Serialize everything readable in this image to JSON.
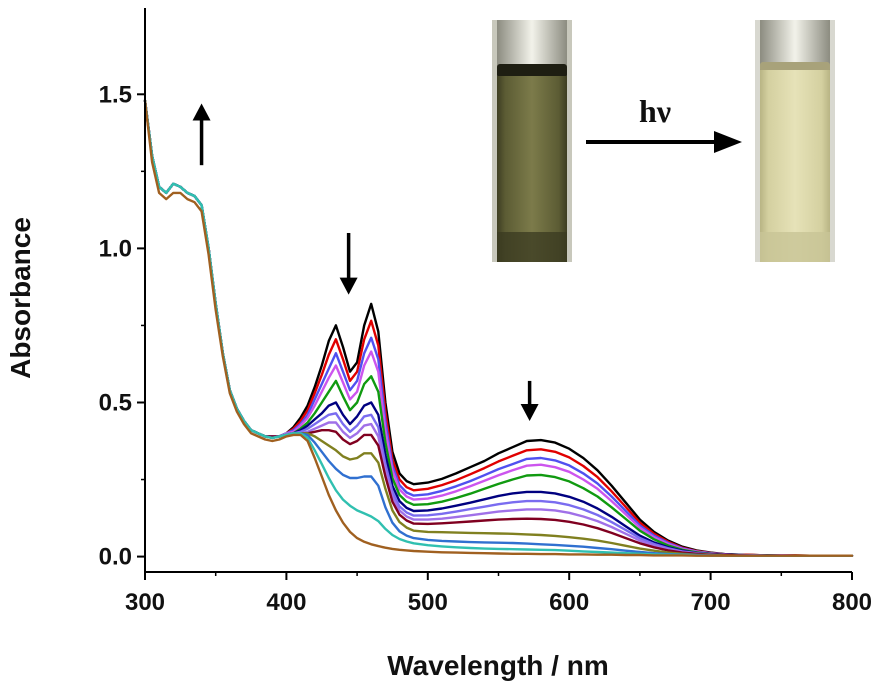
{
  "chart_data": {
    "type": "line",
    "xlabel": "Wavelength / nm",
    "ylabel": "Absorbance",
    "xlim": [
      300,
      800
    ],
    "ylim": [
      -0.05,
      1.78
    ],
    "x_ticks": [
      300,
      400,
      500,
      600,
      700,
      800
    ],
    "y_ticks": [
      0.0,
      0.5,
      1.0,
      1.5
    ],
    "x_tick_labels": [
      "300",
      "400",
      "500",
      "600",
      "700",
      "800"
    ],
    "y_tick_labels": [
      "0.0",
      "0.5",
      "1.0",
      "1.5"
    ],
    "grid": false,
    "legend": "none",
    "x": [
      300,
      305,
      310,
      315,
      320,
      325,
      330,
      335,
      340,
      345,
      350,
      355,
      360,
      365,
      370,
      375,
      380,
      385,
      390,
      395,
      400,
      405,
      410,
      415,
      420,
      425,
      430,
      435,
      440,
      445,
      450,
      455,
      460,
      465,
      470,
      475,
      480,
      485,
      490,
      500,
      510,
      520,
      530,
      540,
      550,
      560,
      570,
      580,
      590,
      600,
      610,
      620,
      630,
      640,
      650,
      660,
      670,
      680,
      690,
      700,
      710,
      720,
      730,
      740,
      750,
      760,
      770,
      780,
      790,
      800
    ],
    "series": [
      {
        "color": "#000000",
        "values": [
          1.48,
          1.3,
          1.2,
          1.18,
          1.21,
          1.2,
          1.18,
          1.17,
          1.14,
          1.0,
          0.82,
          0.66,
          0.54,
          0.48,
          0.44,
          0.41,
          0.4,
          0.39,
          0.39,
          0.39,
          0.4,
          0.42,
          0.45,
          0.49,
          0.55,
          0.62,
          0.7,
          0.75,
          0.68,
          0.6,
          0.63,
          0.75,
          0.82,
          0.73,
          0.5,
          0.34,
          0.27,
          0.245,
          0.235,
          0.24,
          0.252,
          0.27,
          0.29,
          0.31,
          0.335,
          0.355,
          0.375,
          0.378,
          0.37,
          0.35,
          0.32,
          0.28,
          0.23,
          0.175,
          0.12,
          0.08,
          0.052,
          0.032,
          0.02,
          0.013,
          0.008,
          0.006,
          0.005,
          0.004,
          0.004,
          0.004,
          0.003,
          0.003,
          0.003,
          0.003
        ]
      },
      {
        "color": "#e00000",
        "values": [
          1.48,
          1.3,
          1.2,
          1.18,
          1.21,
          1.2,
          1.18,
          1.17,
          1.14,
          1.0,
          0.82,
          0.66,
          0.54,
          0.48,
          0.44,
          0.41,
          0.4,
          0.39,
          0.39,
          0.39,
          0.4,
          0.415,
          0.44,
          0.475,
          0.53,
          0.59,
          0.655,
          0.705,
          0.64,
          0.57,
          0.6,
          0.705,
          0.765,
          0.685,
          0.47,
          0.315,
          0.25,
          0.225,
          0.215,
          0.22,
          0.232,
          0.248,
          0.267,
          0.287,
          0.309,
          0.327,
          0.345,
          0.348,
          0.34,
          0.322,
          0.294,
          0.258,
          0.212,
          0.161,
          0.11,
          0.074,
          0.048,
          0.029,
          0.018,
          0.012,
          0.007,
          0.006,
          0.005,
          0.004,
          0.004,
          0.004,
          0.003,
          0.003,
          0.003,
          0.003
        ]
      },
      {
        "color": "#5050f0",
        "values": [
          1.48,
          1.3,
          1.2,
          1.18,
          1.21,
          1.2,
          1.18,
          1.17,
          1.14,
          1.0,
          0.82,
          0.66,
          0.54,
          0.48,
          0.44,
          0.41,
          0.4,
          0.39,
          0.39,
          0.39,
          0.4,
          0.41,
          0.43,
          0.46,
          0.51,
          0.56,
          0.61,
          0.66,
          0.6,
          0.54,
          0.57,
          0.66,
          0.71,
          0.64,
          0.44,
          0.295,
          0.232,
          0.208,
          0.198,
          0.202,
          0.213,
          0.228,
          0.245,
          0.264,
          0.284,
          0.3,
          0.317,
          0.32,
          0.312,
          0.296,
          0.27,
          0.237,
          0.195,
          0.148,
          0.101,
          0.068,
          0.044,
          0.027,
          0.017,
          0.011,
          0.007,
          0.005,
          0.004,
          0.004,
          0.004,
          0.003,
          0.003,
          0.003,
          0.003,
          0.003
        ]
      },
      {
        "color": "#cc55ee",
        "values": [
          1.48,
          1.3,
          1.2,
          1.18,
          1.21,
          1.2,
          1.18,
          1.17,
          1.14,
          1.0,
          0.82,
          0.66,
          0.54,
          0.48,
          0.44,
          0.41,
          0.4,
          0.39,
          0.39,
          0.39,
          0.4,
          0.405,
          0.425,
          0.45,
          0.49,
          0.535,
          0.58,
          0.62,
          0.565,
          0.51,
          0.535,
          0.62,
          0.665,
          0.6,
          0.41,
          0.28,
          0.218,
          0.195,
          0.185,
          0.188,
          0.198,
          0.212,
          0.228,
          0.246,
          0.264,
          0.28,
          0.295,
          0.298,
          0.29,
          0.275,
          0.25,
          0.22,
          0.18,
          0.137,
          0.094,
          0.063,
          0.041,
          0.025,
          0.016,
          0.01,
          0.007,
          0.005,
          0.004,
          0.004,
          0.004,
          0.003,
          0.003,
          0.003,
          0.003,
          0.003
        ]
      },
      {
        "color": "#109a10",
        "values": [
          1.48,
          1.3,
          1.2,
          1.18,
          1.21,
          1.2,
          1.18,
          1.17,
          1.14,
          1.0,
          0.82,
          0.66,
          0.54,
          0.48,
          0.44,
          0.41,
          0.4,
          0.39,
          0.39,
          0.39,
          0.4,
          0.4,
          0.415,
          0.435,
          0.465,
          0.5,
          0.535,
          0.57,
          0.52,
          0.475,
          0.5,
          0.56,
          0.585,
          0.535,
          0.37,
          0.255,
          0.2,
          0.178,
          0.168,
          0.17,
          0.178,
          0.19,
          0.204,
          0.22,
          0.236,
          0.25,
          0.263,
          0.265,
          0.258,
          0.244,
          0.222,
          0.195,
          0.16,
          0.122,
          0.084,
          0.056,
          0.036,
          0.022,
          0.014,
          0.009,
          0.006,
          0.005,
          0.004,
          0.004,
          0.003,
          0.003,
          0.003,
          0.003,
          0.003,
          0.003
        ]
      },
      {
        "color": "#000080",
        "values": [
          1.48,
          1.3,
          1.2,
          1.18,
          1.21,
          1.2,
          1.18,
          1.17,
          1.14,
          1.0,
          0.82,
          0.66,
          0.54,
          0.48,
          0.44,
          0.41,
          0.4,
          0.39,
          0.39,
          0.39,
          0.4,
          0.4,
          0.41,
          0.425,
          0.445,
          0.465,
          0.49,
          0.5,
          0.46,
          0.43,
          0.455,
          0.49,
          0.5,
          0.46,
          0.33,
          0.23,
          0.18,
          0.158,
          0.148,
          0.15,
          0.156,
          0.165,
          0.175,
          0.186,
          0.197,
          0.205,
          0.21,
          0.21,
          0.205,
          0.194,
          0.178,
          0.156,
          0.129,
          0.098,
          0.068,
          0.046,
          0.03,
          0.019,
          0.012,
          0.008,
          0.006,
          0.005,
          0.004,
          0.004,
          0.003,
          0.003,
          0.003,
          0.003,
          0.003,
          0.003
        ]
      },
      {
        "color": "#7a6cf0",
        "values": [
          1.48,
          1.3,
          1.2,
          1.18,
          1.21,
          1.2,
          1.18,
          1.17,
          1.14,
          1.0,
          0.82,
          0.66,
          0.54,
          0.48,
          0.44,
          0.41,
          0.4,
          0.39,
          0.39,
          0.39,
          0.4,
          0.4,
          0.405,
          0.415,
          0.43,
          0.445,
          0.46,
          0.465,
          0.43,
          0.405,
          0.425,
          0.455,
          0.46,
          0.42,
          0.3,
          0.21,
          0.163,
          0.143,
          0.133,
          0.134,
          0.139,
          0.146,
          0.154,
          0.162,
          0.17,
          0.176,
          0.18,
          0.18,
          0.176,
          0.167,
          0.153,
          0.135,
          0.112,
          0.086,
          0.06,
          0.041,
          0.027,
          0.017,
          0.011,
          0.007,
          0.005,
          0.004,
          0.004,
          0.003,
          0.003,
          0.003,
          0.003,
          0.003,
          0.003,
          0.003
        ]
      },
      {
        "color": "#a070e8",
        "values": [
          1.48,
          1.3,
          1.2,
          1.18,
          1.21,
          1.2,
          1.18,
          1.17,
          1.14,
          1.0,
          0.82,
          0.66,
          0.54,
          0.48,
          0.44,
          0.41,
          0.4,
          0.39,
          0.39,
          0.39,
          0.4,
          0.4,
          0.4,
          0.405,
          0.415,
          0.425,
          0.435,
          0.435,
          0.405,
          0.385,
          0.4,
          0.425,
          0.43,
          0.39,
          0.28,
          0.195,
          0.15,
          0.13,
          0.12,
          0.12,
          0.123,
          0.128,
          0.134,
          0.14,
          0.146,
          0.15,
          0.153,
          0.153,
          0.15,
          0.142,
          0.13,
          0.115,
          0.096,
          0.074,
          0.052,
          0.036,
          0.024,
          0.015,
          0.01,
          0.007,
          0.005,
          0.004,
          0.004,
          0.003,
          0.003,
          0.003,
          0.003,
          0.003,
          0.003,
          0.003
        ]
      },
      {
        "color": "#800020",
        "values": [
          1.48,
          1.3,
          1.2,
          1.18,
          1.21,
          1.2,
          1.18,
          1.17,
          1.14,
          1.0,
          0.82,
          0.66,
          0.54,
          0.48,
          0.44,
          0.41,
          0.4,
          0.39,
          0.39,
          0.39,
          0.395,
          0.4,
          0.4,
          0.4,
          0.405,
          0.41,
          0.41,
          0.405,
          0.38,
          0.365,
          0.375,
          0.395,
          0.395,
          0.36,
          0.26,
          0.178,
          0.136,
          0.117,
          0.107,
          0.106,
          0.108,
          0.111,
          0.114,
          0.117,
          0.12,
          0.122,
          0.123,
          0.122,
          0.119,
          0.113,
          0.104,
          0.092,
          0.077,
          0.06,
          0.043,
          0.03,
          0.02,
          0.013,
          0.009,
          0.006,
          0.005,
          0.004,
          0.003,
          0.003,
          0.003,
          0.003,
          0.003,
          0.003,
          0.003,
          0.003
        ]
      },
      {
        "color": "#808020",
        "values": [
          1.48,
          1.3,
          1.2,
          1.18,
          1.21,
          1.2,
          1.18,
          1.17,
          1.14,
          1.0,
          0.82,
          0.66,
          0.54,
          0.48,
          0.44,
          0.41,
          0.4,
          0.39,
          0.385,
          0.39,
          0.395,
          0.4,
          0.4,
          0.4,
          0.39,
          0.375,
          0.36,
          0.345,
          0.325,
          0.315,
          0.32,
          0.335,
          0.335,
          0.305,
          0.22,
          0.15,
          0.112,
          0.094,
          0.084,
          0.08,
          0.079,
          0.078,
          0.077,
          0.076,
          0.075,
          0.074,
          0.072,
          0.07,
          0.067,
          0.063,
          0.058,
          0.052,
          0.044,
          0.035,
          0.026,
          0.019,
          0.013,
          0.009,
          0.006,
          0.005,
          0.004,
          0.003,
          0.003,
          0.003,
          0.003,
          0.003,
          0.003,
          0.003,
          0.003,
          0.003
        ]
      },
      {
        "color": "#3070d0",
        "values": [
          1.48,
          1.3,
          1.2,
          1.18,
          1.21,
          1.2,
          1.18,
          1.17,
          1.14,
          1.0,
          0.82,
          0.66,
          0.54,
          0.48,
          0.44,
          0.41,
          0.4,
          0.39,
          0.385,
          0.39,
          0.395,
          0.4,
          0.4,
          0.395,
          0.37,
          0.34,
          0.31,
          0.285,
          0.265,
          0.255,
          0.255,
          0.26,
          0.26,
          0.23,
          0.16,
          0.11,
          0.082,
          0.068,
          0.06,
          0.054,
          0.051,
          0.049,
          0.047,
          0.046,
          0.045,
          0.044,
          0.042,
          0.04,
          0.038,
          0.035,
          0.032,
          0.028,
          0.024,
          0.019,
          0.015,
          0.011,
          0.008,
          0.006,
          0.005,
          0.004,
          0.003,
          0.003,
          0.003,
          0.003,
          0.003,
          0.003,
          0.003,
          0.003,
          0.003,
          0.003
        ]
      },
      {
        "color": "#30c0b0",
        "values": [
          1.48,
          1.3,
          1.2,
          1.18,
          1.21,
          1.2,
          1.18,
          1.17,
          1.14,
          1.0,
          0.82,
          0.66,
          0.54,
          0.48,
          0.44,
          0.41,
          0.4,
          0.39,
          0.385,
          0.39,
          0.395,
          0.4,
          0.4,
          0.385,
          0.345,
          0.3,
          0.255,
          0.215,
          0.185,
          0.165,
          0.15,
          0.14,
          0.13,
          0.115,
          0.09,
          0.07,
          0.057,
          0.049,
          0.043,
          0.037,
          0.033,
          0.03,
          0.028,
          0.026,
          0.025,
          0.024,
          0.023,
          0.022,
          0.021,
          0.019,
          0.017,
          0.015,
          0.013,
          0.011,
          0.009,
          0.007,
          0.006,
          0.005,
          0.004,
          0.003,
          0.003,
          0.003,
          0.003,
          0.003,
          0.003,
          0.003,
          0.003,
          0.003,
          0.003,
          0.003
        ]
      },
      {
        "color": "#a06020",
        "values": [
          1.48,
          1.28,
          1.18,
          1.16,
          1.18,
          1.18,
          1.16,
          1.15,
          1.12,
          0.98,
          0.8,
          0.65,
          0.53,
          0.47,
          0.43,
          0.4,
          0.39,
          0.38,
          0.375,
          0.38,
          0.39,
          0.395,
          0.395,
          0.375,
          0.32,
          0.26,
          0.2,
          0.15,
          0.11,
          0.08,
          0.06,
          0.048,
          0.04,
          0.034,
          0.029,
          0.025,
          0.022,
          0.02,
          0.018,
          0.016,
          0.014,
          0.013,
          0.012,
          0.011,
          0.01,
          0.009,
          0.009,
          0.008,
          0.008,
          0.007,
          0.007,
          0.006,
          0.006,
          0.005,
          0.005,
          0.004,
          0.004,
          0.004,
          0.003,
          0.003,
          0.003,
          0.003,
          0.003,
          0.003,
          0.003,
          0.003,
          0.003,
          0.003,
          0.003,
          0.003
        ]
      }
    ],
    "annotations": {
      "hv_label": "hν",
      "arrows": [
        {
          "direction": "up",
          "x": 340,
          "y_top": 1.47,
          "y_bottom": 1.27
        },
        {
          "direction": "down",
          "x": 444,
          "y_top": 1.05,
          "y_bottom": 0.85
        },
        {
          "direction": "down",
          "x": 572,
          "y_top": 0.57,
          "y_bottom": 0.44
        }
      ]
    },
    "inset": {
      "before_color": "#6b6a3c",
      "after_color": "#dcd8a8"
    }
  }
}
